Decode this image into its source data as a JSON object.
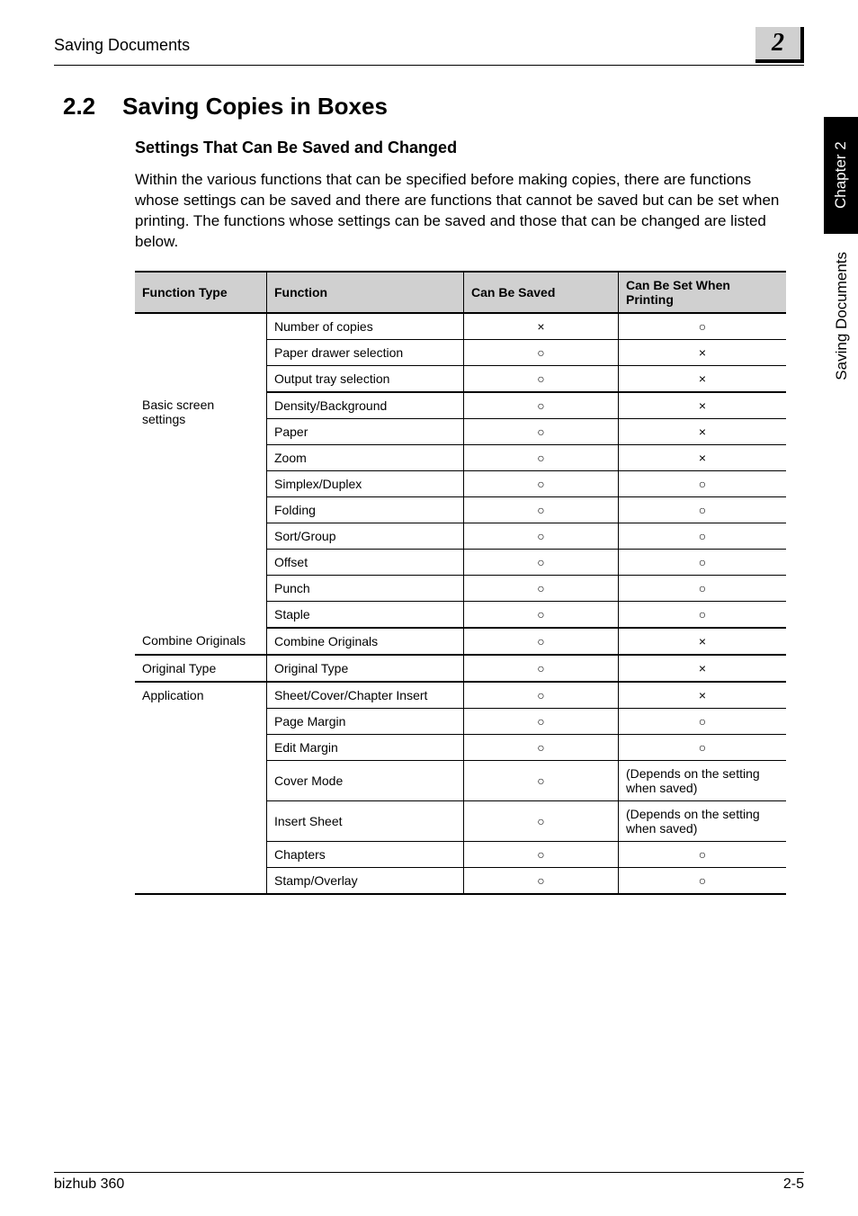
{
  "header": {
    "running_title": "Saving Documents",
    "chapter_number": "2"
  },
  "side": {
    "tab": "Chapter 2",
    "label": "Saving Documents"
  },
  "section": {
    "number": "2.2",
    "title": "Saving Copies in Boxes",
    "sub_heading": "Settings That Can Be Saved and Changed",
    "body": "Within the various functions that can be specified before making copies, there are functions whose settings can be saved and there are functions that cannot be saved but can be set when printing. The functions whose settings can be saved and those that can be changed are listed below."
  },
  "table": {
    "columns": {
      "type": "Function Type",
      "func": "Function",
      "saved": "Can Be Saved",
      "set": "Can Be Set When Printing"
    },
    "symbols": {
      "circle": "○",
      "cross": "×"
    },
    "depends_text": "(Depends on the setting when saved)",
    "groups": [
      {
        "type": "",
        "rows": [
          {
            "func": "Number of copies",
            "saved": "cross",
            "set": "circle"
          },
          {
            "func": "Paper drawer selection",
            "saved": "circle",
            "set": "cross"
          },
          {
            "func": "Output tray selection",
            "saved": "circle",
            "set": "cross"
          }
        ]
      },
      {
        "type": "Basic screen settings",
        "rows": [
          {
            "func": "Density/Background",
            "saved": "circle",
            "set": "cross"
          },
          {
            "func": "Paper",
            "saved": "circle",
            "set": "cross"
          },
          {
            "func": "Zoom",
            "saved": "circle",
            "set": "cross"
          },
          {
            "func": "Simplex/Duplex",
            "saved": "circle",
            "set": "circle"
          },
          {
            "func": "Folding",
            "saved": "circle",
            "set": "circle"
          },
          {
            "func": "Sort/Group",
            "saved": "circle",
            "set": "circle"
          },
          {
            "func": "Offset",
            "saved": "circle",
            "set": "circle"
          },
          {
            "func": "Punch",
            "saved": "circle",
            "set": "circle"
          },
          {
            "func": "Staple",
            "saved": "circle",
            "set": "circle"
          }
        ]
      },
      {
        "type": "Combine Originals",
        "rows": [
          {
            "func": "Combine Originals",
            "saved": "circle",
            "set": "cross"
          }
        ]
      },
      {
        "type": "Original Type",
        "rows": [
          {
            "func": "Original Type",
            "saved": "circle",
            "set": "cross"
          }
        ]
      },
      {
        "type": "Application",
        "rows": [
          {
            "func": "Sheet/Cover/Chapter Insert",
            "saved": "circle",
            "set": "cross"
          },
          {
            "func": "Page Margin",
            "saved": "circle",
            "set": "circle"
          },
          {
            "func": "Edit Margin",
            "saved": "circle",
            "set": "circle"
          },
          {
            "func": "Cover Mode",
            "saved": "circle",
            "set": "depends"
          },
          {
            "func": "Insert Sheet",
            "saved": "circle",
            "set": "depends"
          },
          {
            "func": "Chapters",
            "saved": "circle",
            "set": "circle"
          },
          {
            "func": "Stamp/Overlay",
            "saved": "circle",
            "set": "circle"
          }
        ]
      }
    ]
  },
  "footer": {
    "product": "bizhub 360",
    "page": "2-5"
  }
}
